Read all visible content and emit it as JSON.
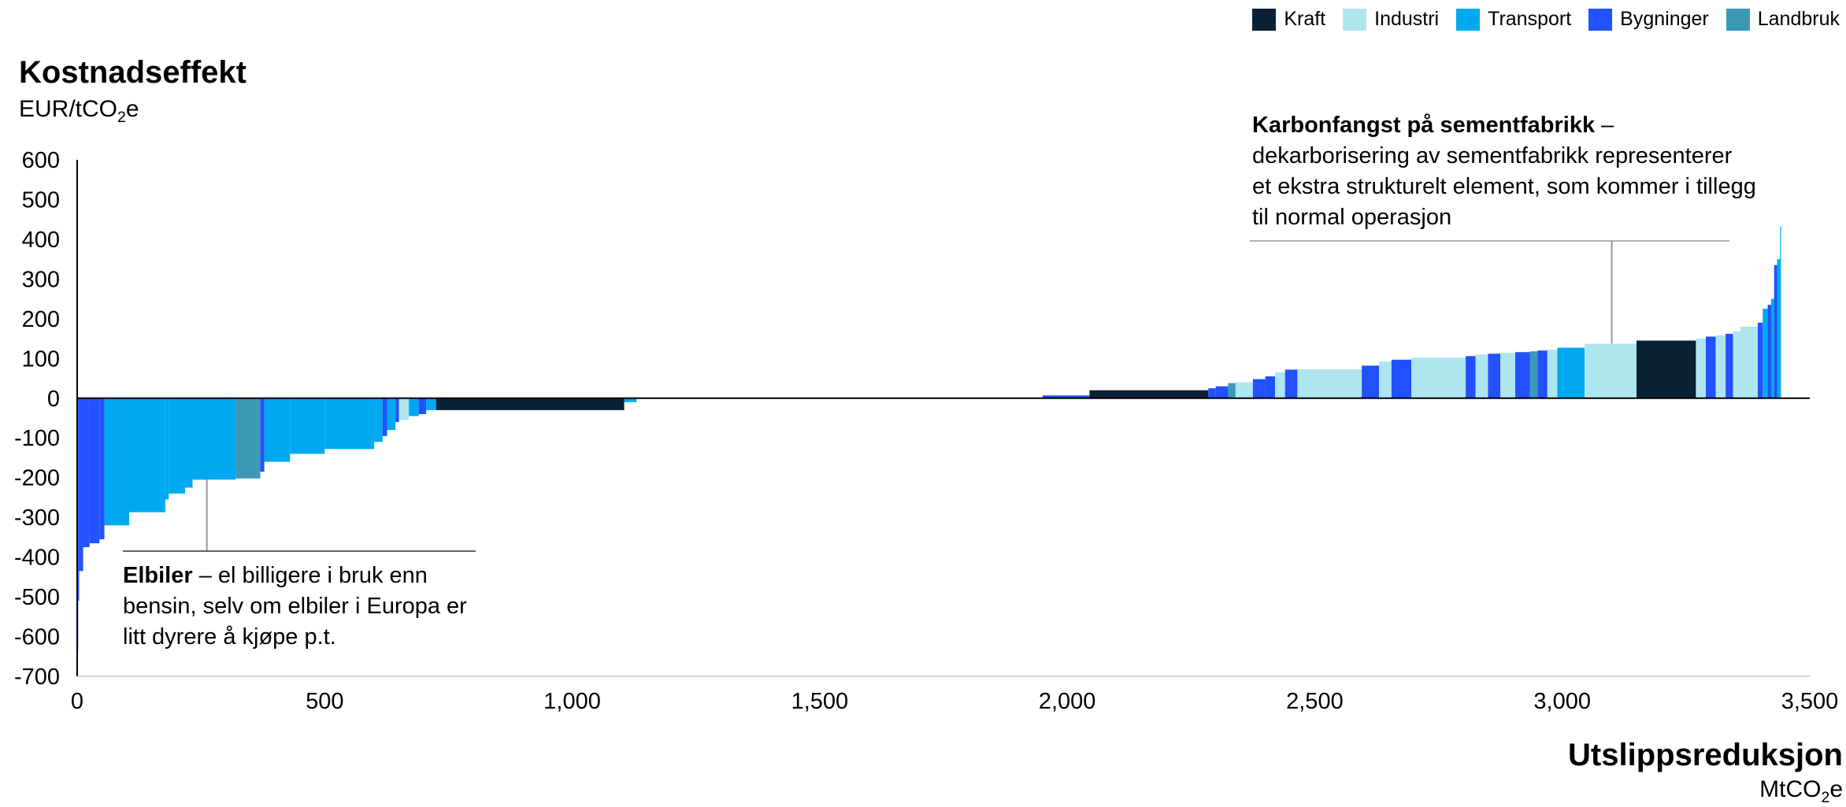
{
  "chart_data": {
    "type": "bar",
    "title": "Kostnadseffekt",
    "ylabel_unit": "EUR/tCO2e",
    "xlabel": "Utslippsreduksjon",
    "xlabel_unit": "MtCO2e",
    "xlim": [
      0,
      3500
    ],
    "ylim": [
      -700,
      600
    ],
    "yticks": [
      "600",
      "500",
      "400",
      "300",
      "200",
      "100",
      "0",
      "-100",
      "-200",
      "-300",
      "-400",
      "-500",
      "-600",
      "-700"
    ],
    "xticks": [
      "0",
      "500",
      "1,000",
      "1,500",
      "2,000",
      "2,500",
      "3,000",
      "3,500"
    ],
    "legend_position": "top-right",
    "legend": [
      {
        "name": "Kraft",
        "color": "#0a2034"
      },
      {
        "name": "Industri",
        "color": "#aee6ef"
      },
      {
        "name": "Transport",
        "color": "#00a8f0"
      },
      {
        "name": "Bygninger",
        "color": "#2251ff"
      },
      {
        "name": "Landbruk",
        "color": "#3b99b5"
      }
    ],
    "bars": [
      {
        "x0": 0,
        "x1": 2,
        "y": -640,
        "sector": "Bygninger"
      },
      {
        "x0": 2,
        "x1": 4,
        "y": -510,
        "sector": "Bygninger"
      },
      {
        "x0": 4,
        "x1": 12,
        "y": -435,
        "sector": "Bygninger"
      },
      {
        "x0": 12,
        "x1": 25,
        "y": -375,
        "sector": "Bygninger"
      },
      {
        "x0": 25,
        "x1": 45,
        "y": -365,
        "sector": "Bygninger"
      },
      {
        "x0": 45,
        "x1": 55,
        "y": -355,
        "sector": "Bygninger"
      },
      {
        "x0": 55,
        "x1": 105,
        "y": -320,
        "sector": "Transport"
      },
      {
        "x0": 105,
        "x1": 178,
        "y": -287,
        "sector": "Transport"
      },
      {
        "x0": 178,
        "x1": 185,
        "y": -255,
        "sector": "Transport"
      },
      {
        "x0": 185,
        "x1": 218,
        "y": -240,
        "sector": "Transport"
      },
      {
        "x0": 218,
        "x1": 233,
        "y": -225,
        "sector": "Transport"
      },
      {
        "x0": 233,
        "x1": 320,
        "y": -205,
        "sector": "Transport"
      },
      {
        "x0": 320,
        "x1": 370,
        "y": -202,
        "sector": "Landbruk"
      },
      {
        "x0": 370,
        "x1": 378,
        "y": -185,
        "sector": "Bygninger"
      },
      {
        "x0": 378,
        "x1": 430,
        "y": -160,
        "sector": "Transport"
      },
      {
        "x0": 430,
        "x1": 500,
        "y": -140,
        "sector": "Transport"
      },
      {
        "x0": 500,
        "x1": 600,
        "y": -128,
        "sector": "Transport"
      },
      {
        "x0": 600,
        "x1": 617,
        "y": -110,
        "sector": "Transport"
      },
      {
        "x0": 617,
        "x1": 626,
        "y": -95,
        "sector": "Bygninger"
      },
      {
        "x0": 626,
        "x1": 643,
        "y": -80,
        "sector": "Transport"
      },
      {
        "x0": 643,
        "x1": 650,
        "y": -60,
        "sector": "Bygninger"
      },
      {
        "x0": 650,
        "x1": 670,
        "y": -55,
        "sector": "Industri"
      },
      {
        "x0": 670,
        "x1": 690,
        "y": -45,
        "sector": "Transport"
      },
      {
        "x0": 690,
        "x1": 705,
        "y": -40,
        "sector": "Bygninger"
      },
      {
        "x0": 705,
        "x1": 725,
        "y": -30,
        "sector": "Transport"
      },
      {
        "x0": 725,
        "x1": 1105,
        "y": -30,
        "sector": "Kraft"
      },
      {
        "x0": 1105,
        "x1": 1130,
        "y": -10,
        "sector": "Transport"
      },
      {
        "x0": 1950,
        "x1": 2045,
        "y": 7,
        "sector": "Bygninger"
      },
      {
        "x0": 2045,
        "x1": 2285,
        "y": 20,
        "sector": "Kraft"
      },
      {
        "x0": 2285,
        "x1": 2300,
        "y": 25,
        "sector": "Bygninger"
      },
      {
        "x0": 2300,
        "x1": 2325,
        "y": 30,
        "sector": "Bygninger"
      },
      {
        "x0": 2325,
        "x1": 2340,
        "y": 38,
        "sector": "Landbruk"
      },
      {
        "x0": 2340,
        "x1": 2375,
        "y": 40,
        "sector": "Industri"
      },
      {
        "x0": 2375,
        "x1": 2400,
        "y": 48,
        "sector": "Bygninger"
      },
      {
        "x0": 2400,
        "x1": 2420,
        "y": 55,
        "sector": "Bygninger"
      },
      {
        "x0": 2420,
        "x1": 2440,
        "y": 65,
        "sector": "Industri"
      },
      {
        "x0": 2440,
        "x1": 2465,
        "y": 72,
        "sector": "Bygninger"
      },
      {
        "x0": 2465,
        "x1": 2595,
        "y": 73,
        "sector": "Industri"
      },
      {
        "x0": 2595,
        "x1": 2630,
        "y": 82,
        "sector": "Bygninger"
      },
      {
        "x0": 2630,
        "x1": 2655,
        "y": 92,
        "sector": "Industri"
      },
      {
        "x0": 2655,
        "x1": 2695,
        "y": 97,
        "sector": "Bygninger"
      },
      {
        "x0": 2695,
        "x1": 2805,
        "y": 102,
        "sector": "Industri"
      },
      {
        "x0": 2805,
        "x1": 2825,
        "y": 106,
        "sector": "Bygninger"
      },
      {
        "x0": 2825,
        "x1": 2850,
        "y": 110,
        "sector": "Industri"
      },
      {
        "x0": 2850,
        "x1": 2875,
        "y": 112,
        "sector": "Bygninger"
      },
      {
        "x0": 2875,
        "x1": 2905,
        "y": 114,
        "sector": "Industri"
      },
      {
        "x0": 2905,
        "x1": 2935,
        "y": 116,
        "sector": "Bygninger"
      },
      {
        "x0": 2935,
        "x1": 2950,
        "y": 118,
        "sector": "Landbruk"
      },
      {
        "x0": 2950,
        "x1": 2970,
        "y": 120,
        "sector": "Bygninger"
      },
      {
        "x0": 2970,
        "x1": 2990,
        "y": 122,
        "sector": "Industri"
      },
      {
        "x0": 2990,
        "x1": 3045,
        "y": 127,
        "sector": "Transport"
      },
      {
        "x0": 3045,
        "x1": 3150,
        "y": 137,
        "sector": "Industri"
      },
      {
        "x0": 3150,
        "x1": 3270,
        "y": 145,
        "sector": "Kraft"
      },
      {
        "x0": 3270,
        "x1": 3290,
        "y": 150,
        "sector": "Industri"
      },
      {
        "x0": 3290,
        "x1": 3310,
        "y": 155,
        "sector": "Bygninger"
      },
      {
        "x0": 3310,
        "x1": 3330,
        "y": 158,
        "sector": "Industri"
      },
      {
        "x0": 3330,
        "x1": 3345,
        "y": 162,
        "sector": "Bygninger"
      },
      {
        "x0": 3345,
        "x1": 3360,
        "y": 168,
        "sector": "Industri"
      },
      {
        "x0": 3360,
        "x1": 3395,
        "y": 180,
        "sector": "Industri"
      },
      {
        "x0": 3395,
        "x1": 3405,
        "y": 190,
        "sector": "Bygninger"
      },
      {
        "x0": 3405,
        "x1": 3415,
        "y": 225,
        "sector": "Transport"
      },
      {
        "x0": 3415,
        "x1": 3422,
        "y": 235,
        "sector": "Bygninger"
      },
      {
        "x0": 3422,
        "x1": 3428,
        "y": 250,
        "sector": "Transport"
      },
      {
        "x0": 3428,
        "x1": 3434,
        "y": 335,
        "sector": "Bygninger"
      },
      {
        "x0": 3434,
        "x1": 3440,
        "y": 350,
        "sector": "Transport"
      },
      {
        "x0": 3440,
        "x1": 3442,
        "y": 432,
        "sector": "Transport"
      }
    ],
    "annotations": [
      {
        "bold": "Elbiler",
        "text": " – el billigere i bruk enn bensin, selv om elbiler i Europa er litt dyrere å kjøpe p.t.",
        "x": 262,
        "y": -205
      },
      {
        "bold": "Karbonfangst på sementfabrikk",
        "text": " – dekarborisering av sementfabrikk representerer et ekstra strukturelt element, som kommer i tillegg til normal operasjon",
        "x": 3100,
        "y": 137
      }
    ]
  }
}
